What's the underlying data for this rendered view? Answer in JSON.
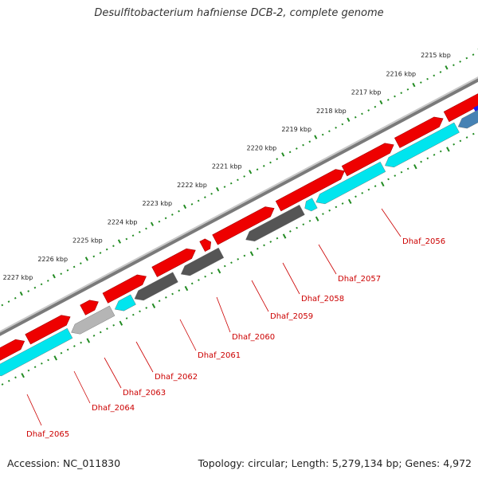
{
  "title": "Desulfitobacterium hafniense DCB-2, complete genome",
  "footer": {
    "accession": "Accession: NC_011830",
    "topology": "Topology: circular; Length: 5,279,134 bp; Genes: 4,972"
  },
  "colors": {
    "forward_gene": "#ee0000",
    "reverse_gene": "#00e5ee",
    "reverse_gene_dark": "#555555",
    "reverse_gene_light": "#b5b5b5",
    "backbone": "#888888",
    "tick": "#228b22",
    "label": "#cc0000"
  },
  "scale_labels": [
    "2215 kbp",
    "2216 kbp",
    "2217 kbp",
    "2218 kbp",
    "2219 kbp",
    "2220 kbp",
    "2221 kbp",
    "2222 kbp",
    "2223 kbp",
    "2224 kbp",
    "2225 kbp",
    "2226 kbp",
    "2227 kbp"
  ],
  "gene_labels": [
    "Dhaf_2056",
    "Dhaf_2057",
    "Dhaf_2058",
    "Dhaf_2059",
    "Dhaf_2060",
    "Dhaf_2061",
    "Dhaf_2062",
    "Dhaf_2063",
    "Dhaf_2064",
    "Dhaf_2065"
  ]
}
